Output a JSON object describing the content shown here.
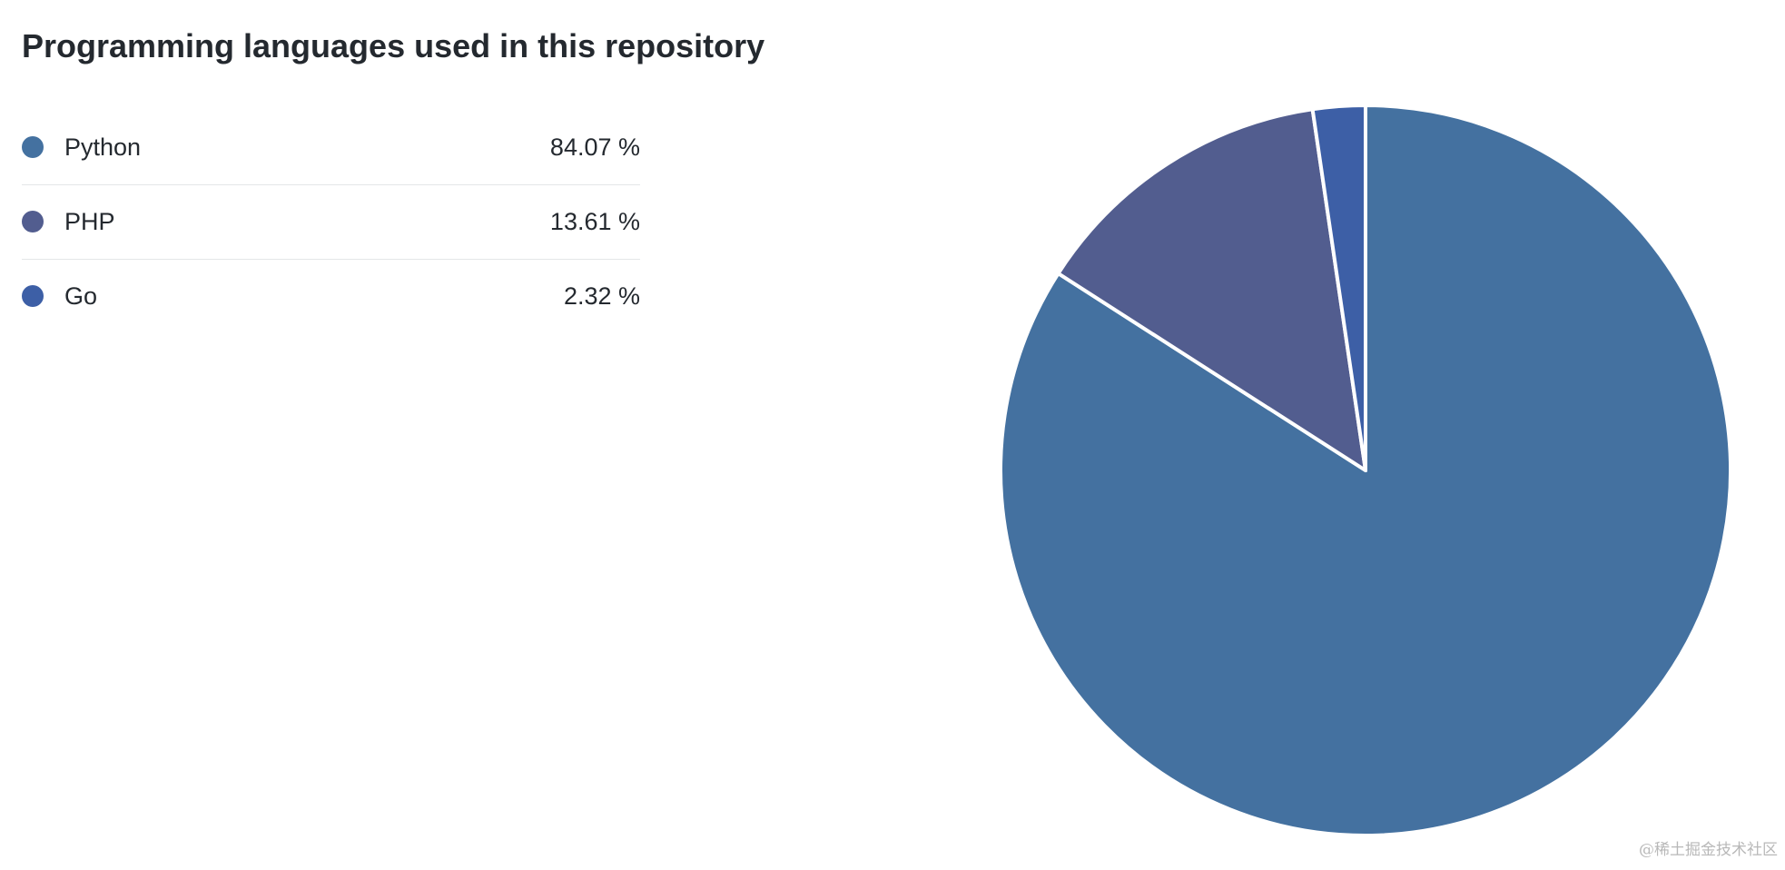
{
  "chart_data": {
    "type": "pie",
    "title": "Programming languages used in this repository",
    "slices": [
      {
        "label": "Python",
        "value": 84.07,
        "value_text": "84.07 %",
        "color": "#4471a0"
      },
      {
        "label": "PHP",
        "value": 13.61,
        "value_text": "13.61 %",
        "color": "#525d8f"
      },
      {
        "label": "Go",
        "value": 2.32,
        "value_text": "2.32 %",
        "color": "#3d5fa6"
      }
    ],
    "slice_border_color": "#ffffff",
    "legend_placement": "left"
  },
  "watermark": "@稀土掘金技术社区"
}
